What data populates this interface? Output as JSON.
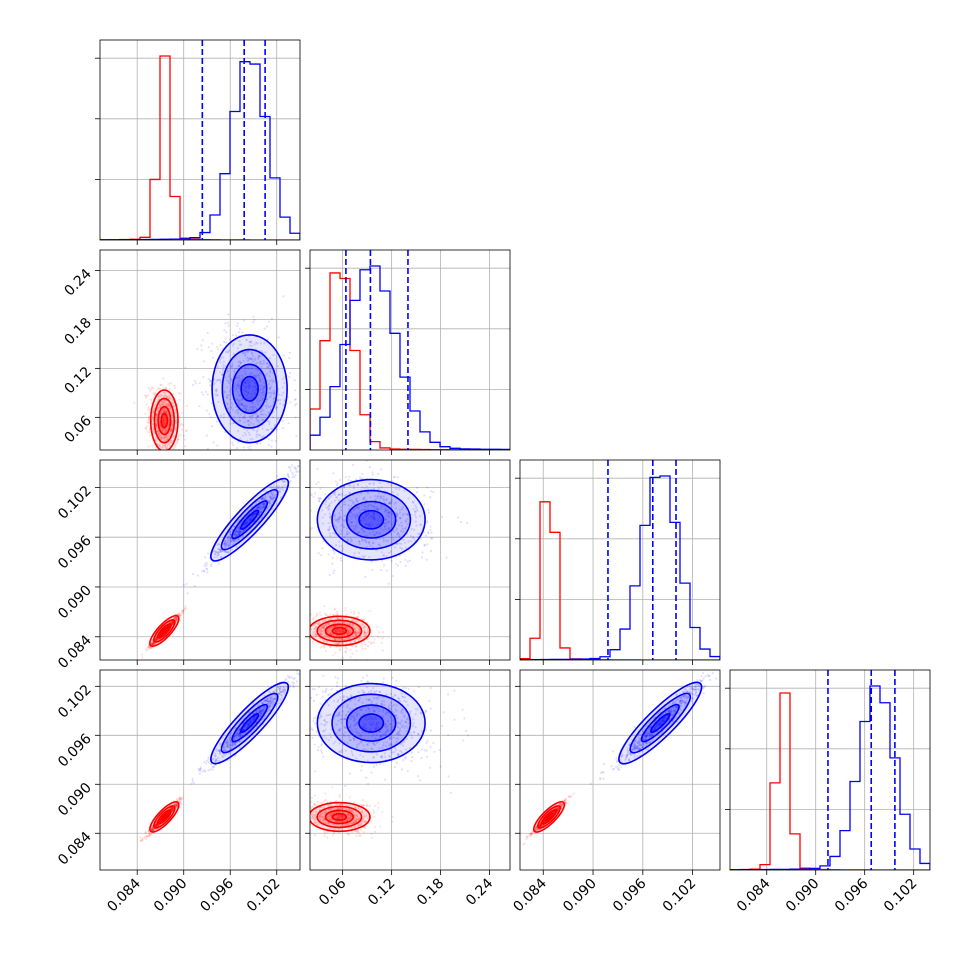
{
  "chart_data": {
    "type": "corner",
    "params": [
      {
        "ticks": [
          0.084,
          0.09,
          0.096,
          0.102
        ],
        "tick_labels": [
          "0.084",
          "0.090",
          "0.096",
          "0.102"
        ],
        "range": [
          0.0792,
          0.105
        ]
      },
      {
        "ticks": [
          0.06,
          0.12,
          0.18,
          0.24
        ],
        "tick_labels": [
          "0.06",
          "0.12",
          "0.18",
          "0.24"
        ],
        "range": [
          0.02,
          0.265
        ]
      },
      {
        "ticks": [
          0.084,
          0.09,
          0.096,
          0.102
        ],
        "tick_labels": [
          "0.084",
          "0.090",
          "0.096",
          "0.102"
        ],
        "range": [
          0.0812,
          0.1053
        ]
      },
      {
        "ticks": [
          0.084,
          0.09,
          0.096,
          0.102
        ],
        "tick_labels": [
          "0.084",
          "0.090",
          "0.096",
          "0.102"
        ],
        "range": [
          0.0795,
          0.104
        ]
      }
    ],
    "colors": {
      "red": "#ff0000",
      "blue": "#0000ff"
    },
    "series": [
      {
        "color": "red",
        "params": [
          {
            "mean": 0.0875,
            "sd": 0.0008
          },
          {
            "mean": 0.056,
            "sd": 0.017
          },
          {
            "mean": 0.0847,
            "sd": 0.0008
          },
          {
            "mean": 0.086,
            "sd": 0.0008
          }
        ]
      },
      {
        "color": "blue",
        "params": [
          {
            "mean": 0.0985,
            "sd": 0.0022
          },
          {
            "mean": 0.095,
            "sd": 0.03
          },
          {
            "mean": 0.0981,
            "sd": 0.0022
          },
          {
            "mean": 0.0975,
            "sd": 0.0022
          }
        ]
      }
    ],
    "quantiles_blue": [
      [
        0.0924,
        0.0978,
        0.1005
      ],
      [
        0.064,
        0.094,
        0.14
      ],
      [
        0.0918,
        0.0972,
        0.1
      ],
      [
        0.0915,
        0.0968,
        0.0997
      ]
    ]
  }
}
